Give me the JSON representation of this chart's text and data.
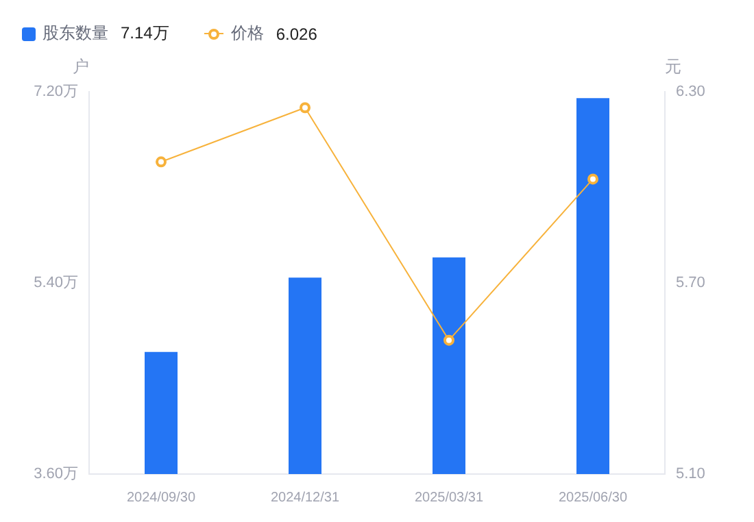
{
  "chart_data": {
    "type": "bar",
    "categories": [
      "2024/09/30",
      "2024/12/31",
      "2025/03/31",
      "2025/06/30"
    ],
    "series": [
      {
        "name": "股东数量",
        "color": "#2475f4",
        "values": [
          4.75,
          5.45,
          5.64,
          7.14
        ]
      },
      {
        "name": "价格",
        "type": "line",
        "axis": "y2",
        "color": "#f7b23b",
        "values": [
          6.08,
          6.25,
          5.52,
          6.026
        ]
      }
    ],
    "annotations": [
      "7.14万",
      "6.026"
    ],
    "ylabel": "户",
    "y2label": "元",
    "ylim": [
      3.6,
      7.2
    ],
    "yticks": [
      {
        "value": 3.6,
        "label": "3.60万"
      },
      {
        "value": 5.4,
        "label": "5.40万"
      },
      {
        "value": 7.2,
        "label": "7.20万"
      }
    ],
    "y2lim": [
      5.1,
      6.3
    ],
    "y2ticks": [
      {
        "value": 5.1,
        "label": "5.10"
      },
      {
        "value": 5.7,
        "label": "5.70"
      },
      {
        "value": 6.3,
        "label": "6.30"
      }
    ],
    "grid": false,
    "legend": "top left",
    "marker": "circle",
    "line_style": "solid"
  }
}
